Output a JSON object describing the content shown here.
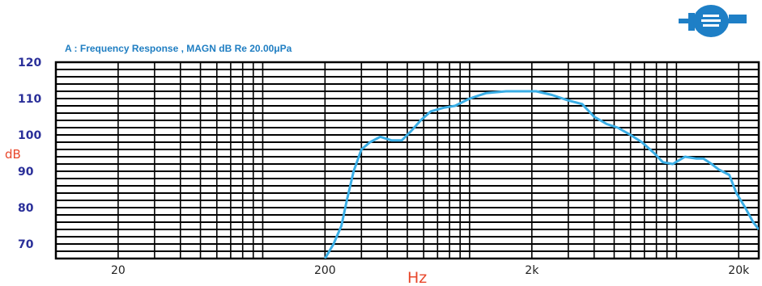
{
  "chart_data": {
    "type": "line",
    "title": "A :   Frequency Response , MAGN dB  Re 20.00μPa",
    "xlabel": "Hz",
    "ylabel": "dB",
    "x_scale": "log",
    "xlim": [
      10,
      25000
    ],
    "ylim": [
      66,
      120
    ],
    "x_ticks": [
      {
        "value": 20,
        "label": "20"
      },
      {
        "value": 200,
        "label": "200"
      },
      {
        "value": 2000,
        "label": "2k"
      },
      {
        "value": 20000,
        "label": "20k"
      }
    ],
    "y_ticks": [
      {
        "value": 70,
        "label": "70"
      },
      {
        "value": 80,
        "label": "80"
      },
      {
        "value": 90,
        "label": "90"
      },
      {
        "value": 100,
        "label": "100"
      },
      {
        "value": 110,
        "label": "110"
      },
      {
        "value": 120,
        "label": "120"
      }
    ],
    "grid": true,
    "series": [
      {
        "points": [
          [
            200,
            66
          ],
          [
            220,
            70
          ],
          [
            240,
            75
          ],
          [
            255,
            82
          ],
          [
            275,
            90
          ],
          [
            300,
            96
          ],
          [
            330,
            98
          ],
          [
            370,
            99.5
          ],
          [
            420,
            98.5
          ],
          [
            470,
            98.5
          ],
          [
            520,
            101
          ],
          [
            580,
            104
          ],
          [
            650,
            106.5
          ],
          [
            750,
            107.5
          ],
          [
            850,
            108
          ],
          [
            1000,
            110
          ],
          [
            1200,
            111.5
          ],
          [
            1500,
            112
          ],
          [
            1800,
            112
          ],
          [
            2100,
            112
          ],
          [
            2500,
            111
          ],
          [
            3000,
            109.5
          ],
          [
            3500,
            108.5
          ],
          [
            4000,
            105
          ],
          [
            4600,
            103
          ],
          [
            5200,
            102
          ],
          [
            6000,
            100
          ],
          [
            6800,
            98
          ],
          [
            7800,
            95
          ],
          [
            8600,
            92.5
          ],
          [
            9600,
            92
          ],
          [
            11000,
            94
          ],
          [
            12500,
            93.5
          ],
          [
            13500,
            93.5
          ],
          [
            14800,
            92
          ],
          [
            16000,
            90.5
          ],
          [
            18000,
            89
          ],
          [
            19500,
            84
          ],
          [
            21500,
            80
          ],
          [
            23500,
            76
          ],
          [
            25000,
            74
          ]
        ]
      }
    ],
    "colors": {
      "line": "#3aaee6",
      "grid": "#000000",
      "title": "#1f7ec2",
      "y_ticks": "#2a2f99",
      "x_ticks": "#222222",
      "axis_label": "#e8472b",
      "logo": "#1e7fc6"
    }
  }
}
